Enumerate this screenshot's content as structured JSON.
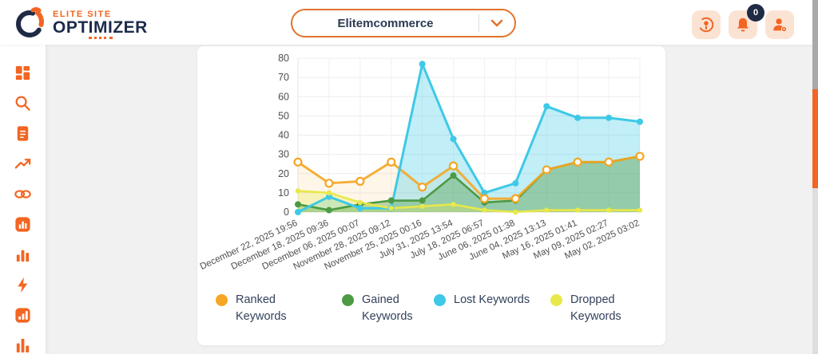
{
  "header": {
    "logo": {
      "top": "ELITE SITE",
      "bottom_pre": "OPT",
      "bottom_mid": "IMI",
      "bottom_post": "ZER"
    },
    "site_selector": {
      "value": "Elitemcommerce",
      "chevron_icon": "chevron-down-icon"
    },
    "icons": [
      "support-icon",
      "bell-icon",
      "user-settings-icon"
    ],
    "notifications_count": "0"
  },
  "sidebar": {
    "items": [
      {
        "icon": "dashboard-icon"
      },
      {
        "icon": "search-icon"
      },
      {
        "icon": "document-icon"
      },
      {
        "icon": "trending-up-icon"
      },
      {
        "icon": "link-icon"
      },
      {
        "icon": "chart-square-icon"
      },
      {
        "icon": "bar-chart-icon"
      },
      {
        "icon": "lightning-icon"
      },
      {
        "icon": "report-square-icon"
      },
      {
        "icon": "column-chart-icon"
      }
    ]
  },
  "colors": {
    "brand_orange": "#f26522",
    "navy": "#1f2a44",
    "icon_bg": "#fbe3d4",
    "grid": "#ececec",
    "axis_text": "#4f4f4f"
  },
  "chart_data": {
    "type": "line",
    "title": "",
    "xlabel": "",
    "ylabel": "",
    "ylim": [
      0,
      80
    ],
    "y_ticks": [
      0,
      10,
      20,
      30,
      40,
      50,
      60,
      70,
      80
    ],
    "grid": true,
    "legend_position": "bottom",
    "x_labels": [
      "December 22, 2025 19:56",
      "December 18, 2025 09:36",
      "December 06, 2025 00:07",
      "November 28, 2025 09:12",
      "November 25, 2025 00:16",
      "July 31, 2025 13:54",
      "July 18, 2025 06:57",
      "June 06, 2025 01:38",
      "June 04, 2025 13:13",
      "May 16, 2025 01:41",
      "May 09, 2025 02:27",
      "May 02, 2025 03:02"
    ],
    "series": [
      {
        "name": "Ranked Keywords",
        "legend_lines": [
          "Ranked",
          "Keywords"
        ],
        "color": "#f5a623",
        "fill_opacity": 0.1,
        "values": [
          26,
          15,
          16,
          26,
          13,
          24,
          7,
          7,
          22,
          26,
          26,
          29
        ]
      },
      {
        "name": "Lost Keywords",
        "legend_lines": [
          "Lost Keywords"
        ],
        "color": "#3ec9e6",
        "fill_opacity": 0.32,
        "values": [
          0,
          8,
          2,
          2,
          77,
          38,
          10,
          15,
          55,
          49,
          49,
          47
        ]
      },
      {
        "name": "Gained Keywords",
        "legend_lines": [
          "Gained",
          "Keywords"
        ],
        "color": "#4c9a44",
        "fill_opacity": 0.38,
        "values": [
          4,
          1,
          4,
          6,
          6,
          19,
          5,
          6,
          22,
          26,
          26,
          29
        ]
      },
      {
        "name": "Dropped Keywords",
        "legend_lines": [
          "Dropped",
          "Keywords"
        ],
        "color": "#e8e84a",
        "fill_opacity": 0.3,
        "values": [
          11,
          10,
          5,
          2,
          3,
          4,
          1,
          0,
          1,
          1,
          1,
          1
        ]
      }
    ],
    "legend_order": [
      "Ranked Keywords",
      "Gained Keywords",
      "Lost Keywords",
      "Dropped Keywords"
    ]
  }
}
